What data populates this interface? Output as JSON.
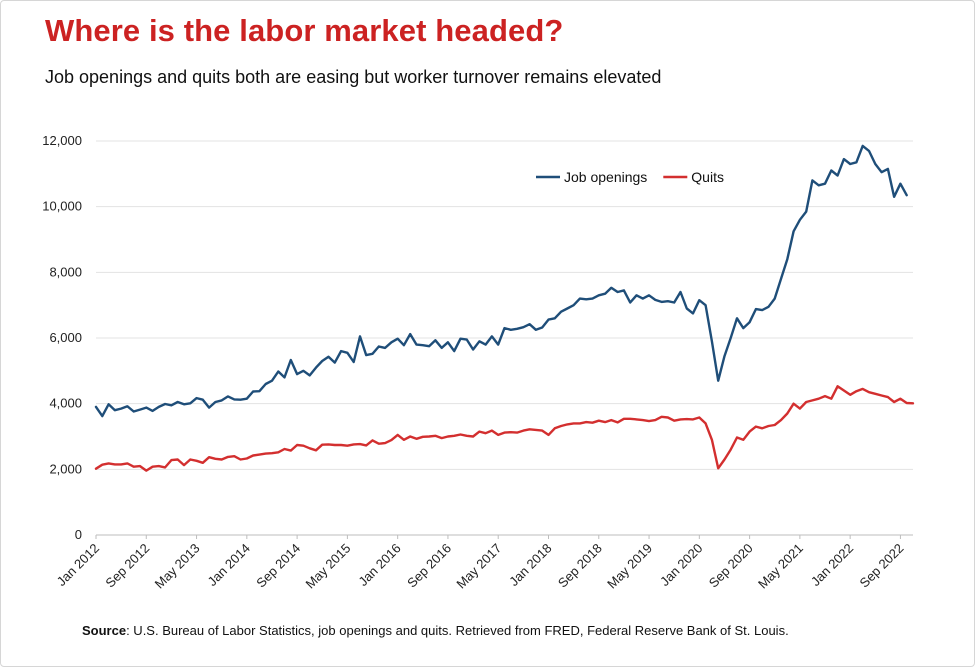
{
  "title": "Where is the labor market headed?",
  "subtitle": "Job openings and quits both are easing but worker turnover remains elevated",
  "source": {
    "label": "Source",
    "text": ": U.S. Bureau of Labor Statistics, job openings and quits. Retrieved from FRED, Federal Reserve Bank of St. Louis."
  },
  "colors": {
    "title": "#cc2222",
    "job_openings": "#1f4e79",
    "quits": "#d32f2f",
    "grid": "#e3e3e3"
  },
  "chart_data": {
    "type": "line",
    "title": "",
    "xlabel": "",
    "ylabel": "",
    "ylim": [
      0,
      12000
    ],
    "y_ticks": [
      0,
      2000,
      4000,
      6000,
      8000,
      10000,
      12000
    ],
    "y_tick_labels": [
      "0",
      "2,000",
      "4,000",
      "6,000",
      "8,000",
      "10,000",
      "12,000"
    ],
    "x_tick_labels": [
      "Jan 2012",
      "Sep 2012",
      "May 2013",
      "Jan 2014",
      "Sep 2014",
      "May 2015",
      "Jan 2016",
      "Sep 2016",
      "May 2017",
      "Jan 2018",
      "Sep 2018",
      "May 2019",
      "Jan 2020",
      "Sep 2020",
      "May 2021",
      "Jan 2022",
      "Sep 2022"
    ],
    "x_start": "Jan 2012",
    "x_end": "Nov 2022",
    "grid": true,
    "legend_position": "top-right",
    "series": [
      {
        "name": "Job openings",
        "color": "#1f4e79",
        "points": [
          [
            "Jan 2012",
            3900
          ],
          [
            "Feb 2012",
            3620
          ],
          [
            "Mar 2012",
            3980
          ],
          [
            "Apr 2012",
            3800
          ],
          [
            "May 2012",
            3850
          ],
          [
            "Jun 2012",
            3920
          ],
          [
            "Jul 2012",
            3760
          ],
          [
            "Aug 2012",
            3820
          ],
          [
            "Sep 2012",
            3880
          ],
          [
            "Oct 2012",
            3780
          ],
          [
            "Nov 2012",
            3900
          ],
          [
            "Dec 2012",
            3990
          ],
          [
            "Jan 2013",
            3950
          ],
          [
            "Feb 2013",
            4050
          ],
          [
            "Mar 2013",
            3980
          ],
          [
            "Apr 2013",
            4010
          ],
          [
            "May 2013",
            4170
          ],
          [
            "Jun 2013",
            4120
          ],
          [
            "Jul 2013",
            3880
          ],
          [
            "Aug 2013",
            4050
          ],
          [
            "Sep 2013",
            4100
          ],
          [
            "Oct 2013",
            4220
          ],
          [
            "Nov 2013",
            4130
          ],
          [
            "Dec 2013",
            4120
          ],
          [
            "Jan 2014",
            4150
          ],
          [
            "Feb 2014",
            4370
          ],
          [
            "Mar 2014",
            4380
          ],
          [
            "Apr 2014",
            4600
          ],
          [
            "May 2014",
            4700
          ],
          [
            "Jun 2014",
            4980
          ],
          [
            "Jul 2014",
            4800
          ],
          [
            "Aug 2014",
            5330
          ],
          [
            "Sep 2014",
            4900
          ],
          [
            "Oct 2014",
            5000
          ],
          [
            "Nov 2014",
            4860
          ],
          [
            "Dec 2014",
            5100
          ],
          [
            "Jan 2015",
            5300
          ],
          [
            "Feb 2015",
            5430
          ],
          [
            "Mar 2015",
            5250
          ],
          [
            "Apr 2015",
            5600
          ],
          [
            "May 2015",
            5550
          ],
          [
            "Jun 2015",
            5270
          ],
          [
            "Jul 2015",
            6050
          ],
          [
            "Aug 2015",
            5480
          ],
          [
            "Sep 2015",
            5520
          ],
          [
            "Oct 2015",
            5740
          ],
          [
            "Nov 2015",
            5700
          ],
          [
            "Dec 2015",
            5870
          ],
          [
            "Jan 2016",
            5980
          ],
          [
            "Feb 2016",
            5780
          ],
          [
            "Mar 2016",
            6120
          ],
          [
            "Apr 2016",
            5800
          ],
          [
            "May 2016",
            5780
          ],
          [
            "Jun 2016",
            5750
          ],
          [
            "Jul 2016",
            5930
          ],
          [
            "Aug 2016",
            5700
          ],
          [
            "Sep 2016",
            5870
          ],
          [
            "Oct 2016",
            5600
          ],
          [
            "Nov 2016",
            5980
          ],
          [
            "Dec 2016",
            5950
          ],
          [
            "Jan 2017",
            5650
          ],
          [
            "Feb 2017",
            5900
          ],
          [
            "Mar 2017",
            5800
          ],
          [
            "Apr 2017",
            6050
          ],
          [
            "May 2017",
            5800
          ],
          [
            "Jun 2017",
            6300
          ],
          [
            "Jul 2017",
            6250
          ],
          [
            "Aug 2017",
            6280
          ],
          [
            "Sep 2017",
            6330
          ],
          [
            "Oct 2017",
            6420
          ],
          [
            "Nov 2017",
            6250
          ],
          [
            "Dec 2017",
            6320
          ],
          [
            "Jan 2018",
            6560
          ],
          [
            "Feb 2018",
            6600
          ],
          [
            "Mar 2018",
            6800
          ],
          [
            "Apr 2018",
            6900
          ],
          [
            "May 2018",
            7000
          ],
          [
            "Jun 2018",
            7200
          ],
          [
            "Jul 2018",
            7180
          ],
          [
            "Aug 2018",
            7200
          ],
          [
            "Sep 2018",
            7300
          ],
          [
            "Oct 2018",
            7350
          ],
          [
            "Nov 2018",
            7530
          ],
          [
            "Dec 2018",
            7400
          ],
          [
            "Jan 2019",
            7450
          ],
          [
            "Feb 2019",
            7080
          ],
          [
            "Mar 2019",
            7300
          ],
          [
            "Apr 2019",
            7200
          ],
          [
            "May 2019",
            7300
          ],
          [
            "Jun 2019",
            7160
          ],
          [
            "Jul 2019",
            7100
          ],
          [
            "Aug 2019",
            7120
          ],
          [
            "Sep 2019",
            7080
          ],
          [
            "Oct 2019",
            7400
          ],
          [
            "Nov 2019",
            6900
          ],
          [
            "Dec 2019",
            6750
          ],
          [
            "Jan 2020",
            7150
          ],
          [
            "Feb 2020",
            7000
          ],
          [
            "Mar 2020",
            5900
          ],
          [
            "Apr 2020",
            4700
          ],
          [
            "May 2020",
            5450
          ],
          [
            "Jun 2020",
            6000
          ],
          [
            "Jul 2020",
            6600
          ],
          [
            "Aug 2020",
            6300
          ],
          [
            "Sep 2020",
            6480
          ],
          [
            "Oct 2020",
            6880
          ],
          [
            "Nov 2020",
            6850
          ],
          [
            "Dec 2020",
            6950
          ],
          [
            "Jan 2021",
            7200
          ],
          [
            "Feb 2021",
            7800
          ],
          [
            "Mar 2021",
            8400
          ],
          [
            "Apr 2021",
            9250
          ],
          [
            "May 2021",
            9600
          ],
          [
            "Jun 2021",
            9850
          ],
          [
            "Jul 2021",
            10800
          ],
          [
            "Aug 2021",
            10650
          ],
          [
            "Sep 2021",
            10700
          ],
          [
            "Oct 2021",
            11100
          ],
          [
            "Nov 2021",
            10950
          ],
          [
            "Dec 2021",
            11450
          ],
          [
            "Jan 2022",
            11300
          ],
          [
            "Feb 2022",
            11350
          ],
          [
            "Mar 2022",
            11850
          ],
          [
            "Apr 2022",
            11700
          ],
          [
            "May 2022",
            11300
          ],
          [
            "Jun 2022",
            11050
          ],
          [
            "Jul 2022",
            11150
          ],
          [
            "Aug 2022",
            10300
          ],
          [
            "Sep 2022",
            10700
          ],
          [
            "Oct 2022",
            10350
          ]
        ]
      },
      {
        "name": "Quits",
        "color": "#d32f2f",
        "points": [
          [
            "Jan 2012",
            2020
          ],
          [
            "Feb 2012",
            2140
          ],
          [
            "Mar 2012",
            2180
          ],
          [
            "Apr 2012",
            2150
          ],
          [
            "May 2012",
            2150
          ],
          [
            "Jun 2012",
            2180
          ],
          [
            "Jul 2012",
            2080
          ],
          [
            "Aug 2012",
            2100
          ],
          [
            "Sep 2012",
            1960
          ],
          [
            "Oct 2012",
            2080
          ],
          [
            "Nov 2012",
            2100
          ],
          [
            "Dec 2012",
            2060
          ],
          [
            "Jan 2013",
            2280
          ],
          [
            "Feb 2013",
            2300
          ],
          [
            "Mar 2013",
            2130
          ],
          [
            "Apr 2013",
            2300
          ],
          [
            "May 2013",
            2260
          ],
          [
            "Jun 2013",
            2200
          ],
          [
            "Jul 2013",
            2370
          ],
          [
            "Aug 2013",
            2320
          ],
          [
            "Sep 2013",
            2300
          ],
          [
            "Oct 2013",
            2380
          ],
          [
            "Nov 2013",
            2400
          ],
          [
            "Dec 2013",
            2300
          ],
          [
            "Jan 2014",
            2330
          ],
          [
            "Feb 2014",
            2420
          ],
          [
            "Mar 2014",
            2450
          ],
          [
            "Apr 2014",
            2480
          ],
          [
            "May 2014",
            2490
          ],
          [
            "Jun 2014",
            2520
          ],
          [
            "Jul 2014",
            2620
          ],
          [
            "Aug 2014",
            2570
          ],
          [
            "Sep 2014",
            2740
          ],
          [
            "Oct 2014",
            2720
          ],
          [
            "Nov 2014",
            2640
          ],
          [
            "Dec 2014",
            2580
          ],
          [
            "Jan 2015",
            2750
          ],
          [
            "Feb 2015",
            2760
          ],
          [
            "Mar 2015",
            2740
          ],
          [
            "Apr 2015",
            2740
          ],
          [
            "May 2015",
            2720
          ],
          [
            "Jun 2015",
            2760
          ],
          [
            "Jul 2015",
            2770
          ],
          [
            "Aug 2015",
            2730
          ],
          [
            "Sep 2015",
            2880
          ],
          [
            "Oct 2015",
            2780
          ],
          [
            "Nov 2015",
            2800
          ],
          [
            "Dec 2015",
            2890
          ],
          [
            "Jan 2016",
            3050
          ],
          [
            "Feb 2016",
            2900
          ],
          [
            "Mar 2016",
            3000
          ],
          [
            "Apr 2016",
            2930
          ],
          [
            "May 2016",
            2990
          ],
          [
            "Jun 2016",
            3000
          ],
          [
            "Jul 2016",
            3020
          ],
          [
            "Aug 2016",
            2950
          ],
          [
            "Sep 2016",
            3000
          ],
          [
            "Oct 2016",
            3020
          ],
          [
            "Nov 2016",
            3060
          ],
          [
            "Dec 2016",
            3020
          ],
          [
            "Jan 2017",
            3000
          ],
          [
            "Feb 2017",
            3150
          ],
          [
            "Mar 2017",
            3100
          ],
          [
            "Apr 2017",
            3180
          ],
          [
            "May 2017",
            3050
          ],
          [
            "Jun 2017",
            3120
          ],
          [
            "Jul 2017",
            3130
          ],
          [
            "Aug 2017",
            3120
          ],
          [
            "Sep 2017",
            3180
          ],
          [
            "Oct 2017",
            3220
          ],
          [
            "Nov 2017",
            3200
          ],
          [
            "Dec 2017",
            3180
          ],
          [
            "Jan 2018",
            3050
          ],
          [
            "Feb 2018",
            3250
          ],
          [
            "Mar 2018",
            3320
          ],
          [
            "Apr 2018",
            3370
          ],
          [
            "May 2018",
            3400
          ],
          [
            "Jun 2018",
            3400
          ],
          [
            "Jul 2018",
            3440
          ],
          [
            "Aug 2018",
            3420
          ],
          [
            "Sep 2018",
            3480
          ],
          [
            "Oct 2018",
            3440
          ],
          [
            "Nov 2018",
            3500
          ],
          [
            "Dec 2018",
            3430
          ],
          [
            "Jan 2019",
            3540
          ],
          [
            "Feb 2019",
            3540
          ],
          [
            "Mar 2019",
            3520
          ],
          [
            "Apr 2019",
            3500
          ],
          [
            "May 2019",
            3470
          ],
          [
            "Jun 2019",
            3500
          ],
          [
            "Jul 2019",
            3600
          ],
          [
            "Aug 2019",
            3580
          ],
          [
            "Sep 2019",
            3480
          ],
          [
            "Oct 2019",
            3520
          ],
          [
            "Nov 2019",
            3530
          ],
          [
            "Dec 2019",
            3520
          ],
          [
            "Jan 2020",
            3580
          ],
          [
            "Feb 2020",
            3400
          ],
          [
            "Mar 2020",
            2900
          ],
          [
            "Apr 2020",
            2030
          ],
          [
            "May 2020",
            2300
          ],
          [
            "Jun 2020",
            2600
          ],
          [
            "Jul 2020",
            2970
          ],
          [
            "Aug 2020",
            2900
          ],
          [
            "Sep 2020",
            3150
          ],
          [
            "Oct 2020",
            3300
          ],
          [
            "Nov 2020",
            3250
          ],
          [
            "Dec 2020",
            3320
          ],
          [
            "Jan 2021",
            3350
          ],
          [
            "Feb 2021",
            3500
          ],
          [
            "Mar 2021",
            3700
          ],
          [
            "Apr 2021",
            4000
          ],
          [
            "May 2021",
            3850
          ],
          [
            "Jun 2021",
            4050
          ],
          [
            "Jul 2021",
            4100
          ],
          [
            "Aug 2021",
            4150
          ],
          [
            "Sep 2021",
            4230
          ],
          [
            "Oct 2021",
            4150
          ],
          [
            "Nov 2021",
            4530
          ],
          [
            "Dec 2021",
            4400
          ],
          [
            "Jan 2022",
            4270
          ],
          [
            "Feb 2022",
            4380
          ],
          [
            "Mar 2022",
            4450
          ],
          [
            "Apr 2022",
            4350
          ],
          [
            "May 2022",
            4300
          ],
          [
            "Jun 2022",
            4250
          ],
          [
            "Jul 2022",
            4200
          ],
          [
            "Aug 2022",
            4050
          ],
          [
            "Sep 2022",
            4150
          ],
          [
            "Oct 2022",
            4020
          ],
          [
            "Nov 2022",
            4010
          ]
        ]
      }
    ]
  }
}
